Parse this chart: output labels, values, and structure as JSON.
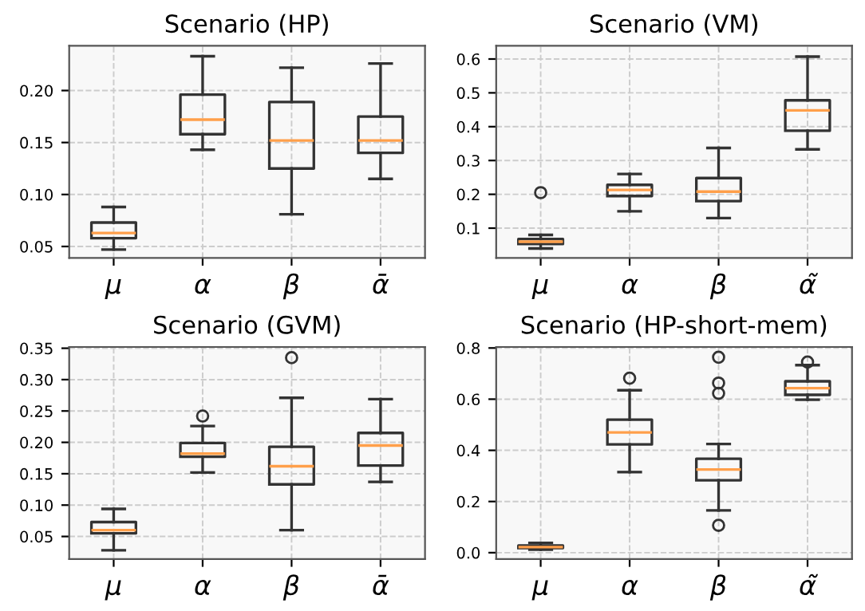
{
  "chart_data": [
    {
      "type": "box",
      "title": "Scenario (HP)",
      "categories": [
        "μ",
        "α",
        "β",
        "ᾱ"
      ],
      "ylim": [
        0.039,
        0.243
      ],
      "yticks": [
        0.05,
        {
          "value": 0.1,
          "label": "0.10"
        },
        0.15,
        {
          "value": 0.2,
          "label": "0.20"
        }
      ],
      "grid": true,
      "boxes": [
        {
          "low": 0.047,
          "q1": 0.058,
          "median": 0.063,
          "q3": 0.073,
          "high": 0.088
        },
        {
          "low": 0.143,
          "q1": 0.158,
          "median": 0.172,
          "q3": 0.196,
          "high": 0.233
        },
        {
          "low": 0.081,
          "q1": 0.125,
          "median": 0.152,
          "q3": 0.189,
          "high": 0.222
        },
        {
          "low": 0.115,
          "q1": 0.14,
          "median": 0.152,
          "q3": 0.175,
          "high": 0.226
        }
      ]
    },
    {
      "type": "box",
      "title": "Scenario (VM)",
      "categories": [
        "μ",
        "α",
        "β",
        "α̃"
      ],
      "ylim": [
        0.012,
        0.639
      ],
      "yticks": [
        0.1,
        0.2,
        0.3,
        0.4,
        0.5,
        0.6
      ],
      "grid": true,
      "boxes": [
        {
          "low": 0.04,
          "q1": 0.053,
          "median": 0.06,
          "q3": 0.068,
          "high": 0.08,
          "outliers": [
            0.205
          ]
        },
        {
          "low": 0.15,
          "q1": 0.195,
          "median": 0.213,
          "q3": 0.228,
          "high": 0.26
        },
        {
          "low": 0.13,
          "q1": 0.18,
          "median": 0.208,
          "q3": 0.248,
          "high": 0.337
        },
        {
          "low": 0.333,
          "q1": 0.388,
          "median": 0.448,
          "q3": 0.478,
          "high": 0.607
        }
      ]
    },
    {
      "type": "box",
      "title": "Scenario (GVM)",
      "categories": [
        "μ",
        "α",
        "β",
        "ᾱ"
      ],
      "ylim": [
        0.014,
        0.352
      ],
      "yticks": [
        0.05,
        {
          "value": 0.1,
          "label": "0.10"
        },
        0.15,
        {
          "value": 0.2,
          "label": "0.20"
        },
        0.25,
        {
          "value": 0.3,
          "label": "0.30"
        },
        0.35
      ],
      "grid": true,
      "boxes": [
        {
          "low": 0.028,
          "q1": 0.055,
          "median": 0.06,
          "q3": 0.073,
          "high": 0.094
        },
        {
          "low": 0.152,
          "q1": 0.177,
          "median": 0.182,
          "q3": 0.199,
          "high": 0.226,
          "outliers": [
            0.242
          ]
        },
        {
          "low": 0.06,
          "q1": 0.133,
          "median": 0.162,
          "q3": 0.193,
          "high": 0.271,
          "outliers": [
            0.335
          ]
        },
        {
          "low": 0.137,
          "q1": 0.163,
          "median": 0.195,
          "q3": 0.215,
          "high": 0.269
        }
      ]
    },
    {
      "type": "box",
      "title": "Scenario (HP-short-mem)",
      "categories": [
        "μ",
        "α",
        "β",
        "α̃"
      ],
      "ylim": [
        -0.025,
        0.804
      ],
      "yticks": [
        {
          "value": 0,
          "label": "0.0"
        },
        0.2,
        0.4,
        0.6,
        0.8
      ],
      "grid": true,
      "boxes": [
        {
          "low": 0.012,
          "q1": 0.018,
          "median": 0.022,
          "q3": 0.028,
          "high": 0.038
        },
        {
          "low": 0.315,
          "q1": 0.423,
          "median": 0.47,
          "q3": 0.52,
          "high": 0.635,
          "outliers": [
            0.682
          ]
        },
        {
          "low": 0.165,
          "q1": 0.283,
          "median": 0.325,
          "q3": 0.367,
          "high": 0.425,
          "outliers": [
            0.107,
            0.623,
            0.663,
            0.764
          ]
        },
        {
          "low": 0.598,
          "q1": 0.617,
          "median": 0.643,
          "q3": 0.67,
          "high": 0.733,
          "outliers": [
            0.745
          ]
        }
      ]
    }
  ]
}
